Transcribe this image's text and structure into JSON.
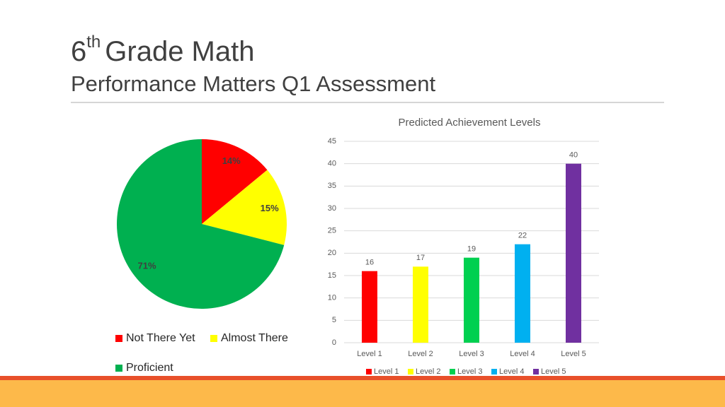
{
  "header": {
    "title_number": "6",
    "title_superscript": "th",
    "title_text": "Grade Math",
    "subtitle": "Performance Matters Q1 Assessment"
  },
  "chart_data": [
    {
      "type": "pie",
      "categories": [
        "Not There Yet",
        "Almost There",
        "Proficient"
      ],
      "values": [
        14,
        15,
        71
      ],
      "value_labels": [
        "14%",
        "15%",
        "71%"
      ],
      "colors": [
        "#ff0000",
        "#ffff00",
        "#00b050"
      ]
    },
    {
      "type": "bar",
      "title": "Predicted Achievement Levels",
      "categories": [
        "Level 1",
        "Level 2",
        "Level 3",
        "Level 4",
        "Level 5"
      ],
      "values": [
        16,
        17,
        19,
        22,
        40
      ],
      "colors": [
        "#ff0000",
        "#ffff00",
        "#00d050",
        "#00b0f0",
        "#7030a0"
      ],
      "ylim": [
        0,
        45
      ],
      "yticks": [
        0,
        5,
        10,
        15,
        20,
        25,
        30,
        35,
        40,
        45
      ],
      "grid": true,
      "legend": "bottom"
    }
  ]
}
